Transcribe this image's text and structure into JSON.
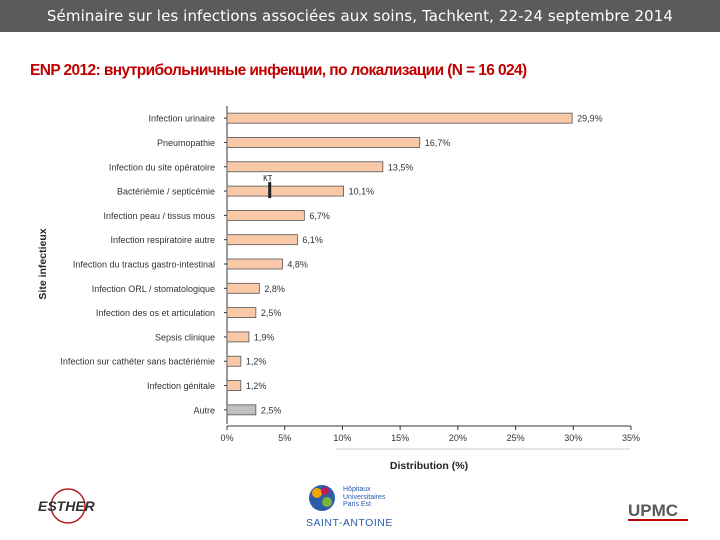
{
  "header": {
    "text": "Séminaire sur les infections associées aux soins, Tachkent, 22-24 septembre 2014"
  },
  "slide_title": "ENP 2012: внутрибольничные инфекции, по локализации (N = 16 024)",
  "annotation": "KT",
  "logos": {
    "left": "ESTHER",
    "center_top": "Hôpitaux Universitaires Paris Est",
    "center_bottom": "SAINT-ANTOINE",
    "right": "UPMC"
  },
  "colors": {
    "bar": "#f9c9a7",
    "bar_last": "#c0c0c0",
    "title": "#c00000",
    "header_bg": "#5b5b5b"
  },
  "chart_data": {
    "type": "bar",
    "orientation": "horizontal",
    "xlabel": "Distribution (%)",
    "ylabel": "Site infectieux",
    "xlim": [
      0,
      35
    ],
    "xticks": [
      "0%",
      "5%",
      "10%",
      "15%",
      "20%",
      "25%",
      "30%",
      "35%"
    ],
    "grid": false,
    "categories": [
      "Infection urinaire",
      "Pneumopathie",
      "Infection du site opératoire",
      "Bactériémie / septicémie",
      "Infection peau / tissus mous",
      "Infection respiratoire autre",
      "Infection du tractus gastro-intestinal",
      "Infection ORL / stomatologique",
      "Infection des os et articulation",
      "Sepsis clinique",
      "Infection sur cathéter sans bactériémie",
      "Infection génitale",
      "Autre"
    ],
    "values": [
      29.9,
      16.7,
      13.5,
      10.1,
      6.7,
      6.1,
      4.8,
      2.8,
      2.5,
      1.9,
      1.2,
      1.2,
      2.5
    ],
    "value_labels": [
      "29,9%",
      "16,7%",
      "13,5%",
      "10,1%",
      "6,7%",
      "6,1%",
      "4,8%",
      "2,8%",
      "2,5%",
      "1,9%",
      "1,2%",
      "1,2%",
      "2,5%"
    ],
    "marker": {
      "category": "Bactériémie / septicémie",
      "value": 3.7,
      "label": "KT"
    }
  }
}
